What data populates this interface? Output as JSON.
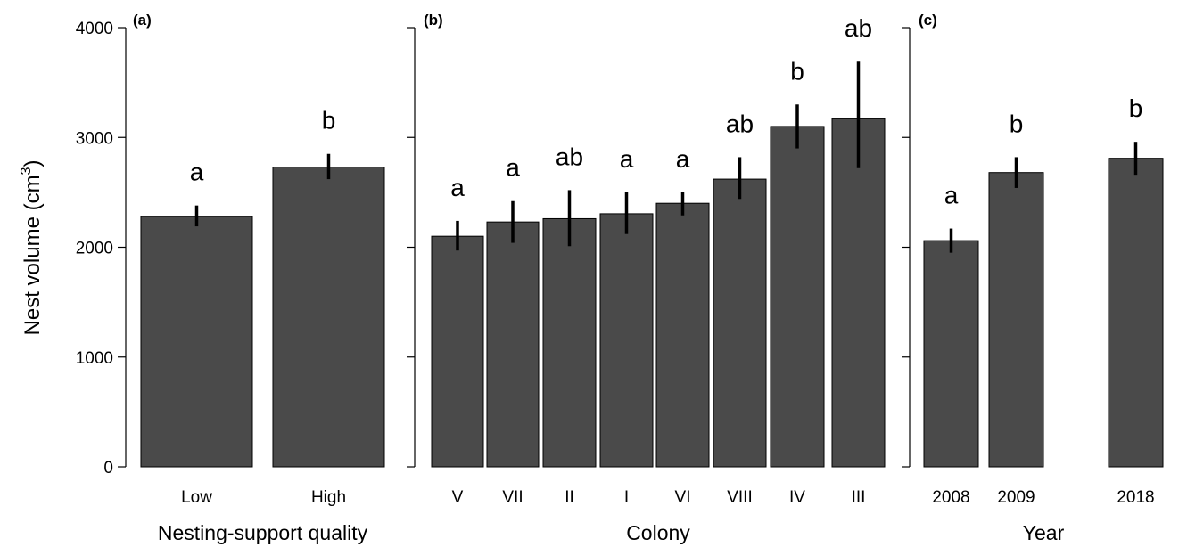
{
  "chart_data": [
    {
      "type": "bar",
      "panel_label": "(a)",
      "title": "",
      "xlabel": "Nesting-support quality",
      "ylabel": "Nest volume (cm³)",
      "ylabel_main": "Nest volume (cm",
      "ylabel_sup": "3",
      "ylabel_close": ")",
      "ylim": [
        0,
        4000
      ],
      "yticks": [
        "0",
        "1000",
        "2000",
        "3000",
        "4000"
      ],
      "categories": [
        "Low",
        "High"
      ],
      "values": [
        2280,
        2730
      ],
      "error_low": [
        2190,
        2620
      ],
      "error_high": [
        2380,
        2850
      ],
      "letters": [
        "a",
        "b"
      ],
      "bar_color": "#4a4a4a"
    },
    {
      "type": "bar",
      "panel_label": "(b)",
      "title": "",
      "xlabel": "Colony",
      "ylim": [
        0,
        4000
      ],
      "categories": [
        "V",
        "VII",
        "II",
        "I",
        "VI",
        "VIII",
        "IV",
        "III"
      ],
      "values": [
        2100,
        2230,
        2260,
        2305,
        2400,
        2620,
        3100,
        3170
      ],
      "error_low": [
        1970,
        2040,
        2010,
        2120,
        2290,
        2440,
        2900,
        2720
      ],
      "error_high": [
        2240,
        2420,
        2520,
        2500,
        2500,
        2820,
        3300,
        3690
      ],
      "letters": [
        "a",
        "a",
        "ab",
        "a",
        "a",
        "ab",
        "b",
        "ab"
      ],
      "bar_color": "#4a4a4a"
    },
    {
      "type": "bar",
      "panel_label": "(c)",
      "title": "",
      "xlabel": "Year",
      "ylim": [
        0,
        4000
      ],
      "categories": [
        "2008",
        "2009",
        "2018"
      ],
      "values": [
        2060,
        2680,
        2810
      ],
      "error_low": [
        1950,
        2540,
        2660
      ],
      "error_high": [
        2170,
        2820,
        2960
      ],
      "letters": [
        "a",
        "b",
        "b"
      ],
      "bar_color": "#4a4a4a"
    }
  ]
}
